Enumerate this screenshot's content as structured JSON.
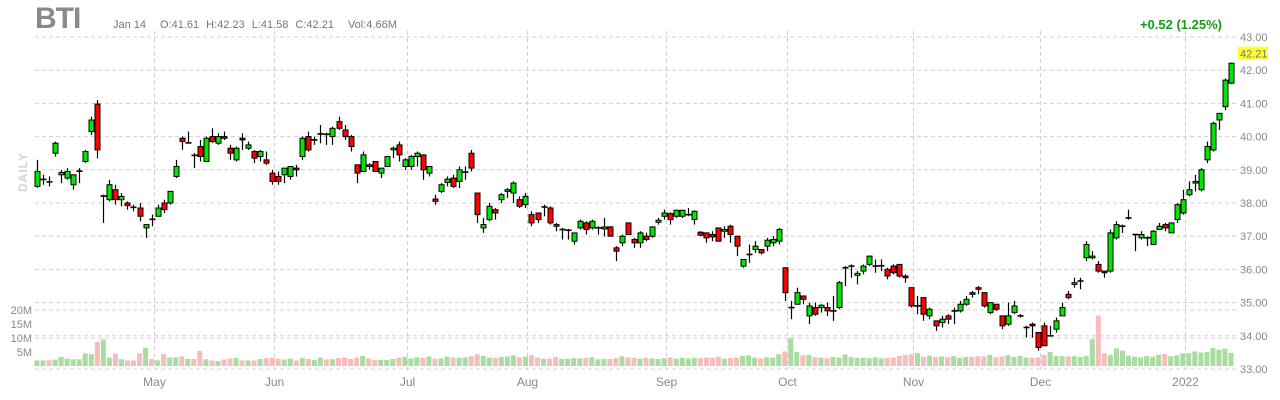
{
  "header": {
    "ticker": "BTI",
    "date": "Jan 14",
    "open": "O:41.61",
    "high": "H:42.23",
    "low": "L:41.58",
    "close": "C:42.21",
    "volume": "Vol:4.66M",
    "change": "+0.52 (1.25%)"
  },
  "colors": {
    "up": "#00e600",
    "down": "#ff0000",
    "up_volume": "#a8dca0",
    "down_volume": "#f7bcbc",
    "change": "#1a9a1a",
    "last_price_tag": "#ffff33"
  },
  "chart_data": {
    "type": "candlestick",
    "timeframe_label": "DAILY",
    "y_axis": {
      "min": 33,
      "max": 43,
      "ticks": [
        "43.00",
        "42.00",
        "41.00",
        "40.00",
        "39.00",
        "38.00",
        "37.00",
        "36.00",
        "35.00",
        "34.00",
        "33.00"
      ]
    },
    "volume_axis": {
      "ticks": [
        "20M",
        "15M",
        "10M",
        "5M"
      ],
      "unit": "M"
    },
    "last_price": "42.21",
    "x_labels": [
      {
        "label": "May",
        "index": 20
      },
      {
        "label": "Jun",
        "index": 40
      },
      {
        "label": "Jul",
        "index": 62
      },
      {
        "label": "Aug",
        "index": 82
      },
      {
        "label": "Sep",
        "index": 105
      },
      {
        "label": "Oct",
        "index": 125
      },
      {
        "label": "Nov",
        "index": 146
      },
      {
        "label": "Dec",
        "index": 167
      },
      {
        "label": "2022",
        "index": 191
      }
    ],
    "ohlc": [
      [
        38.5,
        39.3,
        38.45,
        38.95
      ],
      [
        38.7,
        38.85,
        38.55,
        38.72
      ],
      [
        38.65,
        38.8,
        38.5,
        38.62
      ],
      [
        39.5,
        39.85,
        39.4,
        39.8
      ],
      [
        38.85,
        39.0,
        38.6,
        38.92
      ],
      [
        38.75,
        39.05,
        38.7,
        38.95
      ],
      [
        38.55,
        38.85,
        38.4,
        38.85
      ],
      [
        38.95,
        39.05,
        38.6,
        38.97
      ],
      [
        39.25,
        39.6,
        39.2,
        39.55
      ],
      [
        40.15,
        40.6,
        40.05,
        40.5
      ],
      [
        40.98,
        41.1,
        39.35,
        39.6
      ],
      [
        38.2,
        38.25,
        37.4,
        38.22
      ],
      [
        38.1,
        38.7,
        38.05,
        38.55
      ],
      [
        38.4,
        38.55,
        37.95,
        38.1
      ],
      [
        38.1,
        38.3,
        37.9,
        38.2
      ],
      [
        38.0,
        38.05,
        37.8,
        37.92
      ],
      [
        37.88,
        37.95,
        37.75,
        37.86
      ],
      [
        37.85,
        38.0,
        37.45,
        37.6
      ],
      [
        37.25,
        37.35,
        36.95,
        37.35
      ],
      [
        37.52,
        37.65,
        37.3,
        37.5
      ],
      [
        37.6,
        37.95,
        37.6,
        37.85
      ],
      [
        38.0,
        38.1,
        37.7,
        37.8
      ],
      [
        38.0,
        38.35,
        37.95,
        38.35
      ],
      [
        38.8,
        39.3,
        38.75,
        39.1
      ],
      [
        39.95,
        40.0,
        39.6,
        39.85
      ],
      [
        39.8,
        40.15,
        39.8,
        39.82
      ],
      [
        39.45,
        39.5,
        39.05,
        39.42
      ],
      [
        39.7,
        39.9,
        39.25,
        39.4
      ],
      [
        39.25,
        40.0,
        39.25,
        39.95
      ],
      [
        40.0,
        40.25,
        39.8,
        39.85
      ],
      [
        39.8,
        40.1,
        39.75,
        40.0
      ],
      [
        40.0,
        40.15,
        39.9,
        39.95
      ],
      [
        39.65,
        39.75,
        39.3,
        39.5
      ],
      [
        39.3,
        39.7,
        39.25,
        39.65
      ],
      [
        39.95,
        40.1,
        39.6,
        39.9
      ],
      [
        39.65,
        39.85,
        39.6,
        39.75
      ],
      [
        39.55,
        39.6,
        39.2,
        39.35
      ],
      [
        39.4,
        39.6,
        39.25,
        39.55
      ],
      [
        39.3,
        39.55,
        39.15,
        39.2
      ],
      [
        38.9,
        39.0,
        38.55,
        38.65
      ],
      [
        38.8,
        38.95,
        38.55,
        38.65
      ],
      [
        38.85,
        39.05,
        38.6,
        39.05
      ],
      [
        38.8,
        39.1,
        38.7,
        39.1
      ],
      [
        39.05,
        39.15,
        38.8,
        39.0
      ],
      [
        39.4,
        40.0,
        39.3,
        39.95
      ],
      [
        40.0,
        40.15,
        39.55,
        39.6
      ],
      [
        39.9,
        40.0,
        39.75,
        39.9
      ],
      [
        40.08,
        40.35,
        39.8,
        40.08
      ],
      [
        40.08,
        40.12,
        39.75,
        40.06
      ],
      [
        40.0,
        40.3,
        39.75,
        40.25
      ],
      [
        40.45,
        40.6,
        40.2,
        40.25
      ],
      [
        40.2,
        40.35,
        39.9,
        40.0
      ],
      [
        40.0,
        40.05,
        39.55,
        39.7
      ],
      [
        39.15,
        39.15,
        38.6,
        38.9
      ],
      [
        38.95,
        39.55,
        38.95,
        39.45
      ],
      [
        39.15,
        39.2,
        39.0,
        39.1
      ],
      [
        39.25,
        39.25,
        38.95,
        38.95
      ],
      [
        38.9,
        39.05,
        38.75,
        39.05
      ],
      [
        39.1,
        39.4,
        39.1,
        39.4
      ],
      [
        39.6,
        39.7,
        39.35,
        39.65
      ],
      [
        39.75,
        39.85,
        39.25,
        39.45
      ],
      [
        39.1,
        39.35,
        39.0,
        39.3
      ],
      [
        39.1,
        39.45,
        39.0,
        39.4
      ],
      [
        39.4,
        39.55,
        39.1,
        39.5
      ],
      [
        39.45,
        39.45,
        38.7,
        39.0
      ],
      [
        38.9,
        39.1,
        38.8,
        39.1
      ],
      [
        38.12,
        38.25,
        37.95,
        38.05
      ],
      [
        38.35,
        38.6,
        38.3,
        38.55
      ],
      [
        38.62,
        38.8,
        38.5,
        38.72
      ],
      [
        38.75,
        38.85,
        38.45,
        38.5
      ],
      [
        38.65,
        39.1,
        38.45,
        39.0
      ],
      [
        38.93,
        39.1,
        38.7,
        38.93
      ],
      [
        39.5,
        39.6,
        38.95,
        39.05
      ],
      [
        38.3,
        38.3,
        37.4,
        37.65
      ],
      [
        37.25,
        37.55,
        37.1,
        37.35
      ],
      [
        37.5,
        38.0,
        37.45,
        37.9
      ],
      [
        37.8,
        37.85,
        37.5,
        37.7
      ],
      [
        38.1,
        38.3,
        38.0,
        38.25
      ],
      [
        38.35,
        38.45,
        38.15,
        38.4
      ],
      [
        38.3,
        38.65,
        38.0,
        38.6
      ],
      [
        38.1,
        38.2,
        37.85,
        37.9
      ],
      [
        37.95,
        38.3,
        37.85,
        38.2
      ],
      [
        37.65,
        37.75,
        37.3,
        37.4
      ],
      [
        37.7,
        37.7,
        37.4,
        37.5
      ],
      [
        37.88,
        37.95,
        37.6,
        37.88
      ],
      [
        37.85,
        37.9,
        37.35,
        37.4
      ],
      [
        37.35,
        37.4,
        37.15,
        37.3
      ],
      [
        37.2,
        37.25,
        36.9,
        37.2
      ],
      [
        37.18,
        37.22,
        36.9,
        37.18
      ],
      [
        36.85,
        37.1,
        36.75,
        37.1
      ],
      [
        37.25,
        37.5,
        37.2,
        37.45
      ],
      [
        37.4,
        37.45,
        37.05,
        37.2
      ],
      [
        37.25,
        37.5,
        37.2,
        37.45
      ],
      [
        37.25,
        37.3,
        37.05,
        37.25
      ],
      [
        37.22,
        37.55,
        37.0,
        37.28
      ],
      [
        37.28,
        37.3,
        37.0,
        37.0
      ],
      [
        36.65,
        36.7,
        36.25,
        36.55
      ],
      [
        36.8,
        37.05,
        36.7,
        37.0
      ],
      [
        37.4,
        37.4,
        37.05,
        37.05
      ],
      [
        36.9,
        36.95,
        36.65,
        36.8
      ],
      [
        36.8,
        37.15,
        36.65,
        37.1
      ],
      [
        37.0,
        37.1,
        36.85,
        36.9
      ],
      [
        37.0,
        37.3,
        36.95,
        37.28
      ],
      [
        37.42,
        37.55,
        37.35,
        37.48
      ],
      [
        37.6,
        37.8,
        37.5,
        37.7
      ],
      [
        37.68,
        37.72,
        37.35,
        37.5
      ],
      [
        37.6,
        37.8,
        37.55,
        37.78
      ],
      [
        37.6,
        37.8,
        37.55,
        37.78
      ],
      [
        37.65,
        37.85,
        37.6,
        37.65
      ],
      [
        37.5,
        37.78,
        37.35,
        37.75
      ],
      [
        37.12,
        37.15,
        37.0,
        37.03
      ],
      [
        37.1,
        37.1,
        36.8,
        36.95
      ],
      [
        37.05,
        37.15,
        36.85,
        36.98
      ],
      [
        37.25,
        37.25,
        36.85,
        36.85
      ],
      [
        37.15,
        37.3,
        36.95,
        37.2
      ],
      [
        37.3,
        37.35,
        36.8,
        37.05
      ],
      [
        37.0,
        37.0,
        36.4,
        36.7
      ],
      [
        36.1,
        36.3,
        36.05,
        36.3
      ],
      [
        36.45,
        36.75,
        36.2,
        36.45
      ],
      [
        36.6,
        36.85,
        36.5,
        36.7
      ],
      [
        36.6,
        36.6,
        36.45,
        36.5
      ],
      [
        36.7,
        36.95,
        36.55,
        36.88
      ],
      [
        36.8,
        37.0,
        36.7,
        36.9
      ],
      [
        36.85,
        37.25,
        36.75,
        37.2
      ],
      [
        36.05,
        36.05,
        35.05,
        35.3
      ],
      [
        34.85,
        35.05,
        34.5,
        34.85
      ],
      [
        34.95,
        35.45,
        34.95,
        35.3
      ],
      [
        35.2,
        35.2,
        34.95,
        35.1
      ],
      [
        34.6,
        35.0,
        34.35,
        34.9
      ],
      [
        34.85,
        35.0,
        34.6,
        34.65
      ],
      [
        34.85,
        34.95,
        34.7,
        34.92
      ],
      [
        34.85,
        35.0,
        34.6,
        34.75
      ],
      [
        34.75,
        35.2,
        34.45,
        34.75
      ],
      [
        34.85,
        35.65,
        34.8,
        35.6
      ],
      [
        36.05,
        36.1,
        35.5,
        36.05
      ],
      [
        36.1,
        36.15,
        35.75,
        36.1
      ],
      [
        35.82,
        35.95,
        35.55,
        35.88
      ],
      [
        35.95,
        36.15,
        35.85,
        36.1
      ],
      [
        36.15,
        36.42,
        36.1,
        36.4
      ],
      [
        36.1,
        36.3,
        35.9,
        36.1
      ],
      [
        36.1,
        36.3,
        35.95,
        36.12
      ],
      [
        36.0,
        36.05,
        35.7,
        35.8
      ],
      [
        36.1,
        36.15,
        35.85,
        35.9
      ],
      [
        36.15,
        36.15,
        35.75,
        35.8
      ],
      [
        35.8,
        35.85,
        35.6,
        35.75
      ],
      [
        35.45,
        35.45,
        34.85,
        34.9
      ],
      [
        34.9,
        35.2,
        34.65,
        34.9
      ],
      [
        35.15,
        35.15,
        34.45,
        34.65
      ],
      [
        34.6,
        34.85,
        34.5,
        34.8
      ],
      [
        34.45,
        34.45,
        34.15,
        34.3
      ],
      [
        34.4,
        34.6,
        34.25,
        34.5
      ],
      [
        34.6,
        34.65,
        34.35,
        34.5
      ],
      [
        34.75,
        34.85,
        34.35,
        34.75
      ],
      [
        34.75,
        35.05,
        34.7,
        34.95
      ],
      [
        34.95,
        35.2,
        34.9,
        35.1
      ],
      [
        35.3,
        35.35,
        35.15,
        35.25
      ],
      [
        35.45,
        35.5,
        35.25,
        35.4
      ],
      [
        35.3,
        35.3,
        34.85,
        34.9
      ],
      [
        34.7,
        35.0,
        34.65,
        35.0
      ],
      [
        34.95,
        34.95,
        34.75,
        34.8
      ],
      [
        34.6,
        34.6,
        34.2,
        34.3
      ],
      [
        34.35,
        35.0,
        34.3,
        34.6
      ],
      [
        34.7,
        35.05,
        34.65,
        34.9
      ],
      [
        34.6,
        34.65,
        34.55,
        34.6
      ],
      [
        34.25,
        34.3,
        33.95,
        34.25
      ],
      [
        34.35,
        34.4,
        33.95,
        34.3
      ],
      [
        34.1,
        34.1,
        33.55,
        33.65
      ],
      [
        34.3,
        34.4,
        33.7,
        33.7
      ],
      [
        34.0,
        34.3,
        34.0,
        34.0
      ],
      [
        34.2,
        34.55,
        34.1,
        34.45
      ],
      [
        34.6,
        35.0,
        34.6,
        34.85
      ],
      [
        35.25,
        35.35,
        35.1,
        35.15
      ],
      [
        35.55,
        35.75,
        35.45,
        35.6
      ],
      [
        35.65,
        35.75,
        35.4,
        35.65
      ],
      [
        36.35,
        36.85,
        36.25,
        36.75
      ],
      [
        36.35,
        36.55,
        36.3,
        36.4
      ],
      [
        36.15,
        36.25,
        35.9,
        35.95
      ],
      [
        35.95,
        35.95,
        35.75,
        35.9
      ],
      [
        35.95,
        37.2,
        35.9,
        37.1
      ],
      [
        36.95,
        37.45,
        36.9,
        37.35
      ],
      [
        37.3,
        37.35,
        37.1,
        37.3
      ],
      [
        37.55,
        37.8,
        37.5,
        37.55
      ],
      [
        37.05,
        37.05,
        36.55,
        37.05
      ],
      [
        36.95,
        37.15,
        36.9,
        37.05
      ],
      [
        36.95,
        37.0,
        36.7,
        36.95
      ],
      [
        36.75,
        37.18,
        36.75,
        37.15
      ],
      [
        37.2,
        37.4,
        37.2,
        37.3
      ],
      [
        37.35,
        37.4,
        37.15,
        37.25
      ],
      [
        37.1,
        37.42,
        37.1,
        37.4
      ],
      [
        37.5,
        38.0,
        37.4,
        37.95
      ],
      [
        37.7,
        38.4,
        37.65,
        38.1
      ],
      [
        38.25,
        38.65,
        38.2,
        38.4
      ],
      [
        38.6,
        38.85,
        38.35,
        38.65
      ],
      [
        38.4,
        39.05,
        38.35,
        39.0
      ],
      [
        39.3,
        39.85,
        39.2,
        39.7
      ],
      [
        39.6,
        40.45,
        39.55,
        40.4
      ],
      [
        40.5,
        40.7,
        40.2,
        40.7
      ],
      [
        40.9,
        41.75,
        40.8,
        41.7
      ],
      [
        41.61,
        42.23,
        41.58,
        42.21
      ]
    ],
    "volume_millions": [
      2.0,
      2.0,
      2.1,
      2.3,
      3.2,
      2.6,
      2.4,
      2.4,
      4.5,
      4.2,
      8.6,
      9.5,
      3.0,
      4.4,
      2.4,
      2.0,
      2.0,
      4.5,
      6.5,
      2.5,
      2.0,
      4.3,
      3.0,
      3.1,
      3.5,
      2.5,
      2.5,
      5.4,
      2.4,
      2.0,
      1.8,
      2.3,
      2.7,
      2.9,
      2.0,
      2.0,
      2.0,
      2.5,
      2.8,
      3.0,
      2.6,
      2.3,
      2.6,
      2.0,
      2.9,
      2.5,
      2.2,
      3.0,
      2.4,
      2.4,
      2.8,
      3.0,
      2.5,
      3.0,
      3.6,
      2.7,
      2.1,
      2.2,
      2.2,
      2.5,
      3.0,
      3.3,
      2.7,
      3.1,
      2.9,
      3.4,
      2.6,
      2.7,
      3.3,
      3.0,
      2.9,
      3.0,
      3.5,
      4.2,
      3.6,
      3.0,
      2.8,
      3.2,
      3.4,
      3.8,
      3.1,
      3.3,
      3.9,
      3.0,
      2.6,
      2.7,
      3.2,
      2.5,
      2.6,
      2.8,
      2.7,
      2.9,
      3.1,
      2.4,
      2.6,
      2.5,
      2.8,
      3.4,
      3.0,
      2.9,
      2.6,
      2.9,
      2.7,
      2.5,
      2.8,
      3.1,
      2.6,
      2.9,
      2.7,
      2.9,
      2.8,
      3.0,
      2.9,
      3.3,
      2.6,
      2.8,
      3.0,
      3.6,
      3.8,
      3.0,
      2.7,
      3.1,
      3.0,
      4.2,
      5.2,
      10.0,
      5.0,
      3.8,
      3.9,
      3.1,
      3.0,
      2.8,
      3.2,
      3.0,
      4.1,
      3.2,
      2.9,
      3.0,
      2.8,
      3.1,
      2.7,
      2.9,
      3.0,
      3.6,
      3.9,
      4.2,
      4.6,
      3.3,
      3.7,
      3.2,
      3.4,
      3.1,
      3.6,
      3.0,
      3.2,
      3.3,
      3.5,
      3.4,
      3.9,
      3.1,
      3.4,
      3.8,
      3.2,
      3.6,
      3.0,
      2.9,
      3.1,
      4.0,
      5.0,
      3.6,
      3.5,
      3.4,
      3.5,
      3.2,
      3.6,
      9.6,
      18.0,
      4.6,
      4.0,
      6.3,
      5.5,
      3.7,
      3.4,
      3.1,
      3.6,
      3.3,
      4.0,
      4.3,
      3.5,
      3.8,
      4.5,
      4.6,
      5.2,
      4.8,
      5.0,
      6.4,
      5.8,
      6.2,
      4.66
    ]
  }
}
